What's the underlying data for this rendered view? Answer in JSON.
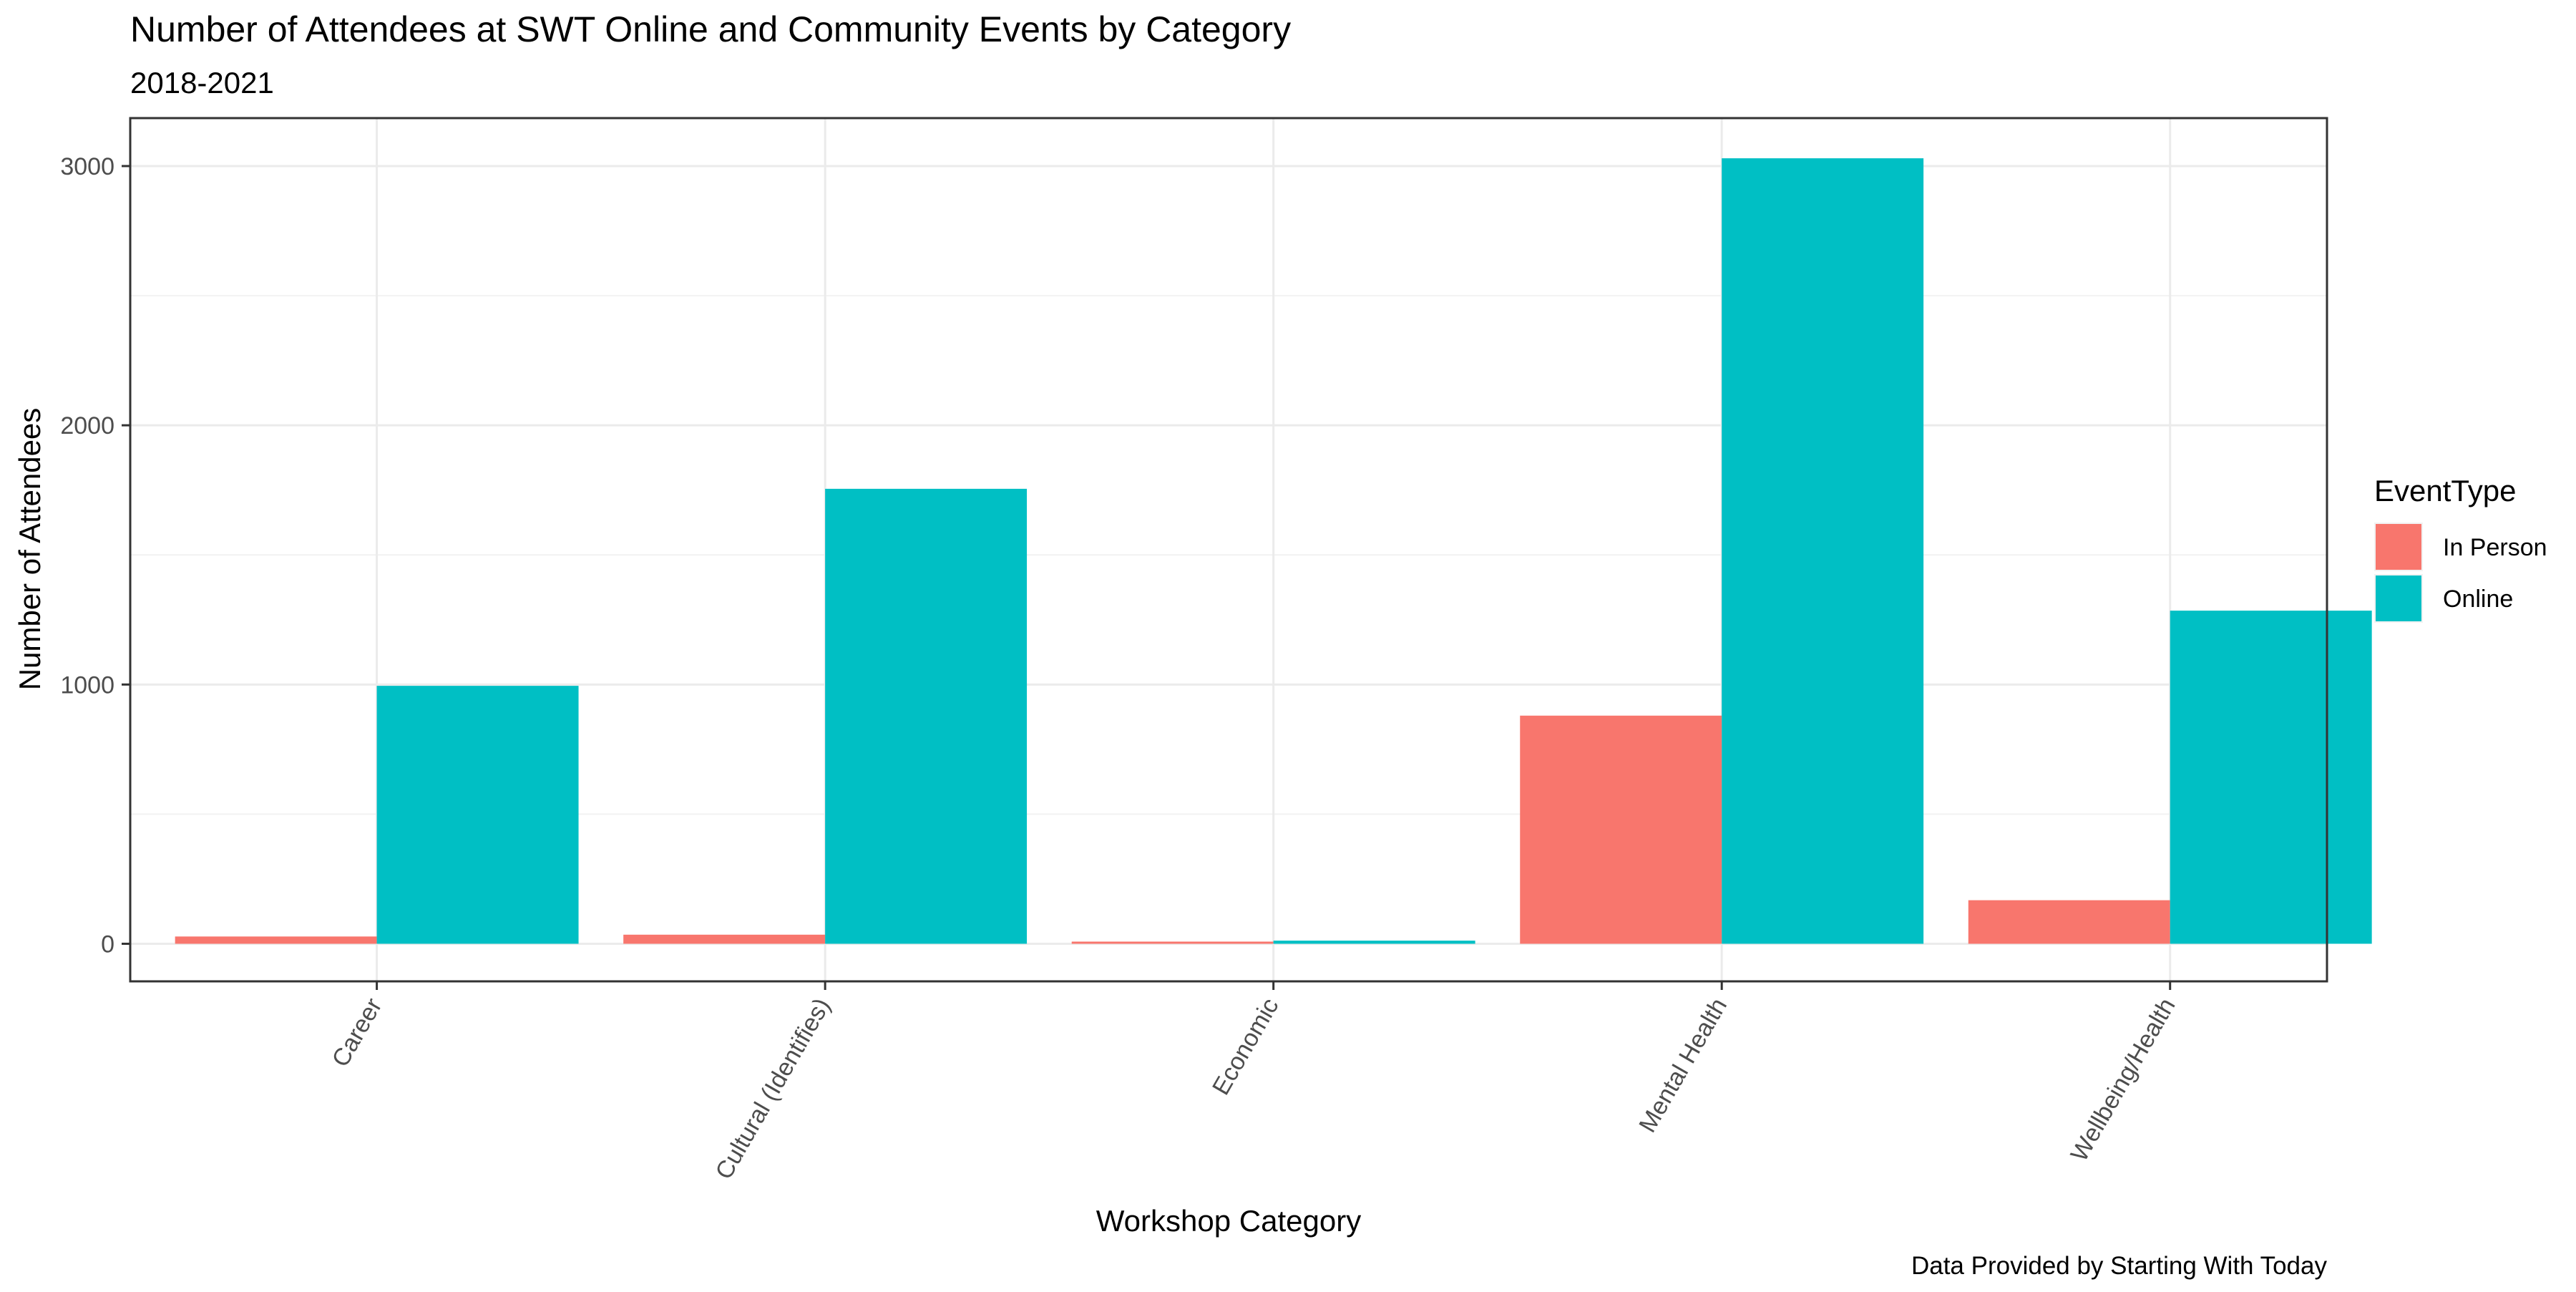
{
  "chart_data": {
    "type": "bar",
    "title": "Number of Attendees at SWT Online and Community Events by Category",
    "subtitle": "2018-2021",
    "xlabel": "Workshop Category",
    "ylabel": "Number of Attendees",
    "caption": "Data Provided by Starting With Today",
    "categories": [
      "Career",
      "Cultural (Identifies)",
      "Economic",
      "Mental Health",
      "Wellbeing/Health"
    ],
    "series": [
      {
        "name": "In Person",
        "color": "#F8766D",
        "values": [
          28,
          35,
          5,
          880,
          168
        ]
      },
      {
        "name": "Online",
        "color": "#00BFC4",
        "values": [
          995,
          1755,
          12,
          3030,
          1285
        ]
      }
    ],
    "ylim": [
      -145,
      3185
    ],
    "yticks": [
      0,
      1000,
      2000,
      3000
    ],
    "yminor": [
      500,
      1500,
      2500
    ],
    "legend_title": "EventType",
    "legend_position": "right",
    "grid": true
  }
}
